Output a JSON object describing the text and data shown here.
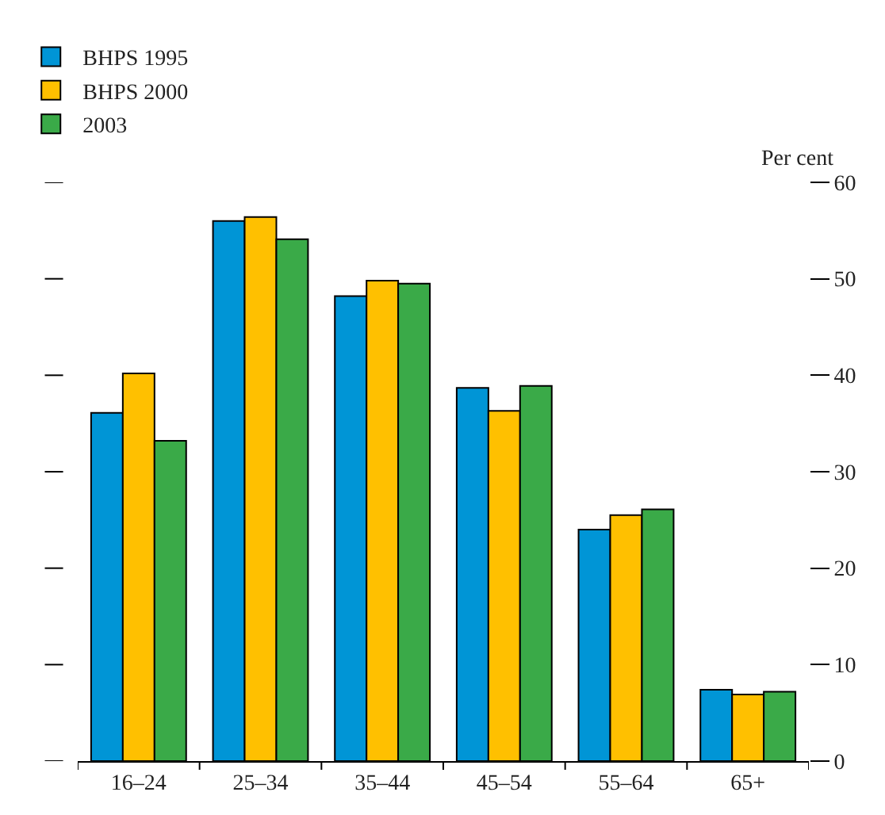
{
  "chart_data": {
    "type": "bar",
    "ylabel": "Per cent",
    "categories": [
      "16–24",
      "25–34",
      "35–44",
      "45–54",
      "55–64",
      "65+"
    ],
    "series": [
      {
        "name": "BHPS 1995",
        "color": "#0095d6",
        "values": [
          36.1,
          56.0,
          48.2,
          38.7,
          24.0,
          7.4
        ]
      },
      {
        "name": "BHPS 2000",
        "color": "#ffc000",
        "values": [
          40.2,
          56.4,
          49.8,
          36.3,
          25.5,
          6.9
        ]
      },
      {
        "name": "2003",
        "color": "#3aaa48",
        "values": [
          33.2,
          54.1,
          49.5,
          38.9,
          26.1,
          7.2
        ]
      }
    ],
    "ylim": [
      0,
      60
    ],
    "yticks": [
      0,
      10,
      20,
      30,
      40,
      50,
      60
    ],
    "legend": "top left"
  }
}
